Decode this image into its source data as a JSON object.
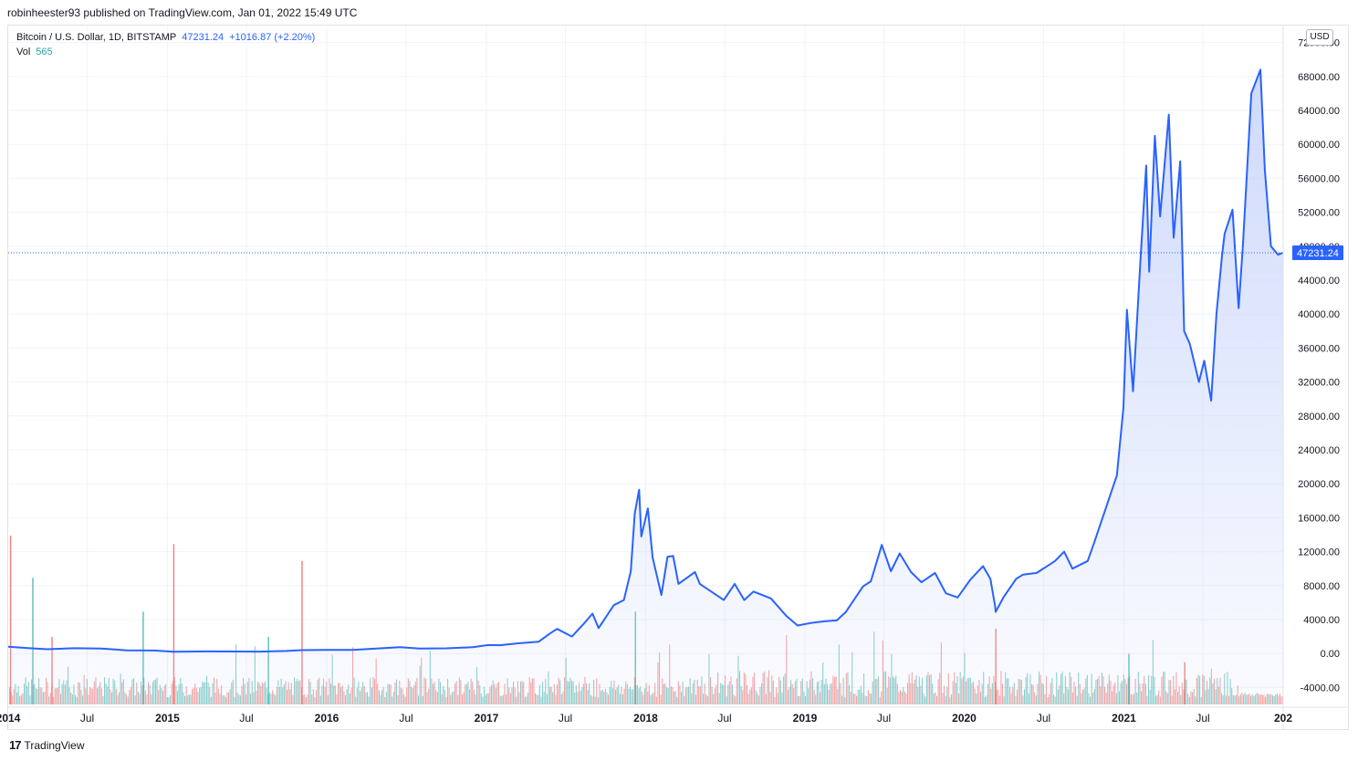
{
  "header": {
    "author": "robinheester93",
    "published_text": "published on TradingView.com, Jan 01, 2022 15:49 UTC"
  },
  "legend": {
    "symbol": "Bitcoin / U.S. Dollar, 1D, BITSTAMP",
    "last": "47231.24",
    "change": "+1016.87 (+2.20%)",
    "vol_label": "Vol",
    "vol_value": "565"
  },
  "currency": "USD",
  "footer": {
    "brand": "TradingView",
    "mark": "17"
  },
  "colors": {
    "line": "#2962ff",
    "area_top": "#c9d5fb",
    "vol_up": "#26a69a",
    "vol_down": "#ef5350",
    "grid": "#f0f3fa",
    "axis_text": "#131722",
    "price_tag": "#2962ff"
  },
  "chart_data": {
    "type": "area",
    "symbol": "BTCUSD",
    "current_price": 47231.24,
    "current_price_label": "47231.24",
    "ylim": [
      -6000,
      74000
    ],
    "yticks": [
      -4000,
      0,
      4000,
      8000,
      12000,
      16000,
      20000,
      24000,
      28000,
      32000,
      36000,
      40000,
      44000,
      48000,
      52000,
      56000,
      60000,
      64000,
      68000,
      72000
    ],
    "ytick_labels": [
      "-4000.00",
      "0.00",
      "4000.00",
      "8000.00",
      "12000.00",
      "16000.00",
      "20000.00",
      "24000.00",
      "28000.00",
      "32000.00",
      "36000.00",
      "40000.00",
      "44000.00",
      "48000.00",
      "52000.00",
      "56000.00",
      "60000.00",
      "64000.00",
      "68000.00",
      "72000.00"
    ],
    "xlim": [
      "2014-01-01",
      "2022-01-01"
    ],
    "xticks": [
      {
        "date": "2014-01-01",
        "label": "2014",
        "bold": true
      },
      {
        "date": "2014-07-01",
        "label": "Jul",
        "bold": false
      },
      {
        "date": "2015-01-01",
        "label": "2015",
        "bold": true
      },
      {
        "date": "2015-07-01",
        "label": "Jul",
        "bold": false
      },
      {
        "date": "2016-01-01",
        "label": "2016",
        "bold": true
      },
      {
        "date": "2016-07-01",
        "label": "Jul",
        "bold": false
      },
      {
        "date": "2017-01-01",
        "label": "2017",
        "bold": true
      },
      {
        "date": "2017-07-01",
        "label": "Jul",
        "bold": false
      },
      {
        "date": "2018-01-01",
        "label": "2018",
        "bold": true
      },
      {
        "date": "2018-07-01",
        "label": "Jul",
        "bold": false
      },
      {
        "date": "2019-01-01",
        "label": "2019",
        "bold": true
      },
      {
        "date": "2019-07-01",
        "label": "Jul",
        "bold": false
      },
      {
        "date": "2020-01-01",
        "label": "2020",
        "bold": true
      },
      {
        "date": "2020-07-01",
        "label": "Jul",
        "bold": false
      },
      {
        "date": "2021-01-01",
        "label": "2021",
        "bold": true
      },
      {
        "date": "2021-07-01",
        "label": "Jul",
        "bold": false
      },
      {
        "date": "2022-01-01",
        "label": "202",
        "bold": true
      }
    ],
    "series": [
      {
        "x": [
          "2014-01-01",
          "2014-02-15",
          "2014-04-01",
          "2014-06-01",
          "2014-08-01",
          "2014-10-01",
          "2014-12-01",
          "2015-01-15",
          "2015-04-01",
          "2015-06-01",
          "2015-08-01",
          "2015-10-01",
          "2015-11-04",
          "2016-01-01",
          "2016-03-01",
          "2016-06-17",
          "2016-08-01",
          "2016-10-01",
          "2016-12-01",
          "2017-01-05",
          "2017-02-01",
          "2017-03-15",
          "2017-05-01",
          "2017-05-25",
          "2017-06-12",
          "2017-07-16",
          "2017-08-10",
          "2017-09-01",
          "2017-09-15",
          "2017-10-20",
          "2017-11-12",
          "2017-11-28",
          "2017-12-07",
          "2017-12-17",
          "2017-12-22",
          "2018-01-06",
          "2018-01-17",
          "2018-02-06",
          "2018-02-20",
          "2018-03-05",
          "2018-03-17",
          "2018-04-24",
          "2018-05-05",
          "2018-06-29",
          "2018-07-24",
          "2018-08-15",
          "2018-09-05",
          "2018-10-15",
          "2018-11-20",
          "2018-12-15",
          "2019-01-15",
          "2019-02-15",
          "2019-03-15",
          "2019-04-05",
          "2019-05-14",
          "2019-06-01",
          "2019-06-26",
          "2019-07-17",
          "2019-08-06",
          "2019-09-01",
          "2019-09-25",
          "2019-10-26",
          "2019-11-20",
          "2019-12-17",
          "2020-01-15",
          "2020-02-13",
          "2020-03-01",
          "2020-03-12",
          "2020-03-13",
          "2020-04-01",
          "2020-04-29",
          "2020-05-15",
          "2020-06-15",
          "2020-07-27",
          "2020-08-17",
          "2020-09-05",
          "2020-10-10",
          "2020-10-25",
          "2020-11-25",
          "2020-12-16",
          "2020-12-31",
          "2021-01-08",
          "2021-01-22",
          "2021-02-08",
          "2021-02-21",
          "2021-02-28",
          "2021-03-13",
          "2021-03-25",
          "2021-04-14",
          "2021-04-25",
          "2021-05-10",
          "2021-05-19",
          "2021-06-01",
          "2021-06-22",
          "2021-07-04",
          "2021-07-20",
          "2021-08-01",
          "2021-08-14",
          "2021-08-20",
          "2021-09-07",
          "2021-09-21",
          "2021-10-01",
          "2021-10-20",
          "2021-11-10",
          "2021-11-20",
          "2021-12-04",
          "2021-12-20",
          "2022-01-01"
        ],
        "y": [
          800,
          650,
          500,
          620,
          590,
          380,
          360,
          210,
          250,
          240,
          230,
          300,
          400,
          430,
          420,
          750,
          580,
          610,
          740,
          1000,
          980,
          1200,
          1400,
          2300,
          2900,
          2000,
          3400,
          4700,
          3000,
          5700,
          6300,
          9700,
          16500,
          19300,
          13800,
          17100,
          11300,
          6900,
          11400,
          11500,
          8200,
          9600,
          8200,
          6300,
          8200,
          6300,
          7300,
          6500,
          4400,
          3300,
          3600,
          3800,
          3900,
          4900,
          7900,
          8500,
          12800,
          9700,
          11800,
          9600,
          8400,
          9500,
          7100,
          6600,
          8700,
          10300,
          8800,
          5500,
          4900,
          6700,
          8800,
          9300,
          9500,
          10900,
          12000,
          10000,
          10900,
          13100,
          17800,
          21000,
          29000,
          40500,
          30900,
          46500,
          57500,
          45000,
          61000,
          51500,
          63500,
          49000,
          58000,
          38000,
          36500,
          32000,
          34500,
          29800,
          40000,
          47000,
          49500,
          52300,
          40700,
          48300,
          66000,
          68800,
          57000,
          48000,
          47000,
          47231
        ]
      }
    ],
    "volume_spikes": [
      {
        "date": "2014-01-05",
        "value": 100
      },
      {
        "date": "2014-02-25",
        "value": 75
      },
      {
        "date": "2014-04-10",
        "value": 40
      },
      {
        "date": "2014-11-05",
        "value": 55
      },
      {
        "date": "2015-01-14",
        "value": 95
      },
      {
        "date": "2015-08-19",
        "value": 40
      },
      {
        "date": "2015-11-04",
        "value": 85
      },
      {
        "date": "2017-12-07",
        "value": 55
      },
      {
        "date": "2020-03-12",
        "value": 45
      },
      {
        "date": "2021-01-11",
        "value": 30
      },
      {
        "date": "2021-05-19",
        "value": 25
      }
    ],
    "legend_placement": "top-left",
    "grid": true,
    "y_axis_side": "right"
  }
}
